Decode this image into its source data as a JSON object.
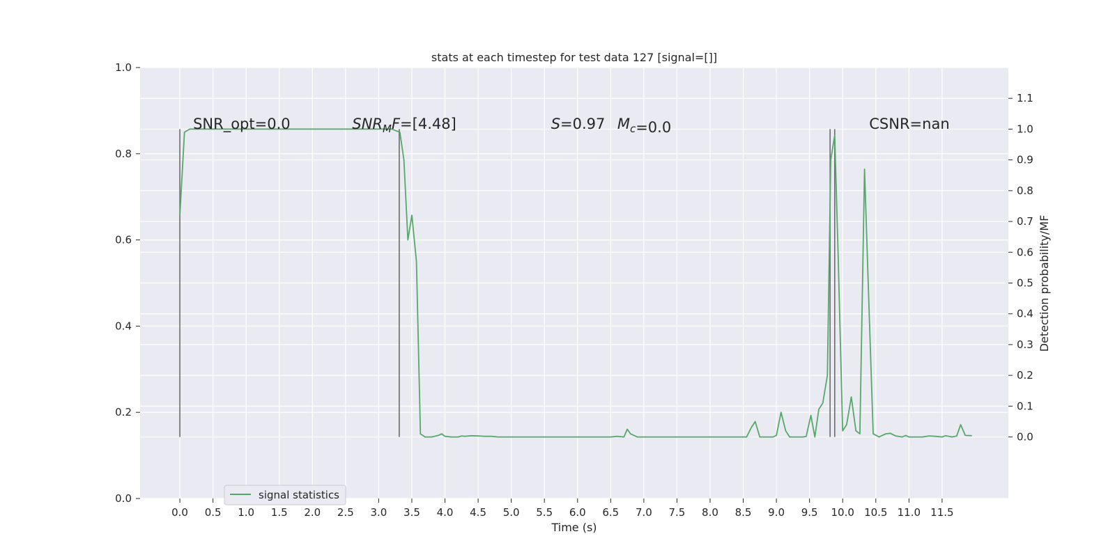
{
  "chart_data": {
    "type": "line",
    "title": "stats at each timestep for test data 127 [signal=[]]",
    "xlabel": "Time (s)",
    "ylabel": "",
    "y2label": "Detection probability/MF",
    "xlim": [
      -0.6,
      12.5
    ],
    "ylim": [
      0,
      1.0
    ],
    "y2lim": [
      -0.2,
      1.2
    ],
    "xticks": [
      "0.0",
      "0.5",
      "1.0",
      "1.5",
      "2.0",
      "2.5",
      "3.0",
      "3.5",
      "4.0",
      "4.5",
      "5.0",
      "5.5",
      "6.0",
      "6.5",
      "7.0",
      "7.5",
      "8.0",
      "8.5",
      "9.0",
      "9.5",
      "10.0",
      "10.5",
      "11.0",
      "11.5"
    ],
    "yticks": [
      "0.0",
      "0.2",
      "0.4",
      "0.6",
      "0.8",
      "1.0"
    ],
    "y2ticks": [
      "0.0",
      "0.1",
      "0.2",
      "0.3",
      "0.4",
      "0.5",
      "0.6",
      "0.7",
      "0.8",
      "0.9",
      "1.0",
      "1.1"
    ],
    "grid": true,
    "legend_position": "lower-left",
    "annotations": [
      {
        "text": "SNR_opt=0.0",
        "x": 0.2
      },
      {
        "text": "=[4.48]",
        "x": 2.6,
        "math_base": "SNR",
        "math_sub": "M",
        "math_tail": "F"
      },
      {
        "text": "=0.97",
        "x": 5.6,
        "math_base": "S"
      },
      {
        "text": "=0.0",
        "x": 6.6,
        "math_base": "M",
        "math_sub": "c"
      },
      {
        "text": "CSNR=nan",
        "x": 10.4
      }
    ],
    "vlines": [
      0.0,
      3.31,
      9.81,
      9.88
    ],
    "series": [
      {
        "name": "signal statistics",
        "color": "#55a868",
        "axis": "right",
        "x": [
          0.0,
          0.07,
          0.15,
          0.3,
          0.6,
          1.0,
          1.5,
          2.0,
          2.5,
          3.0,
          3.2,
          3.32,
          3.38,
          3.44,
          3.5,
          3.57,
          3.63,
          3.7,
          3.8,
          3.9,
          3.95,
          4.0,
          4.1,
          4.2,
          4.25,
          4.3,
          4.4,
          4.5,
          4.6,
          4.7,
          4.8,
          5.0,
          5.5,
          6.0,
          6.5,
          6.6,
          6.7,
          6.75,
          6.8,
          6.9,
          7.0,
          7.2,
          7.4,
          7.5,
          8.0,
          8.5,
          8.55,
          8.62,
          8.68,
          8.75,
          8.85,
          8.95,
          9.0,
          9.07,
          9.14,
          9.2,
          9.3,
          9.4,
          9.45,
          9.52,
          9.58,
          9.64,
          9.7,
          9.77,
          9.82,
          9.88,
          9.93,
          10.0,
          10.06,
          10.13,
          10.2,
          10.26,
          10.33,
          10.4,
          10.46,
          10.55,
          10.65,
          10.72,
          10.8,
          10.9,
          10.95,
          11.0,
          11.1,
          11.2,
          11.3,
          11.4,
          11.5,
          11.55,
          11.65,
          11.72,
          11.78,
          11.85,
          11.95
        ],
        "y": [
          0.72,
          0.99,
          1.0,
          1.0,
          1.0,
          1.0,
          1.0,
          1.0,
          1.0,
          1.0,
          1.0,
          0.99,
          0.9,
          0.64,
          0.72,
          0.57,
          0.01,
          0.0,
          0.0,
          0.005,
          0.01,
          0.002,
          0.0,
          0.0,
          0.003,
          0.002,
          0.004,
          0.003,
          0.002,
          0.002,
          0.0,
          0.0,
          0.0,
          0.0,
          0.0,
          0.002,
          0.0,
          0.025,
          0.01,
          0.0,
          0.0,
          0.0,
          0.0,
          0.0,
          0.0,
          0.0,
          0.0,
          0.03,
          0.05,
          0.0,
          0.0,
          0.0,
          0.005,
          0.08,
          0.02,
          0.0,
          0.0,
          0.0,
          0.002,
          0.07,
          0.0,
          0.09,
          0.11,
          0.2,
          0.9,
          0.98,
          0.6,
          0.02,
          0.04,
          0.13,
          0.02,
          0.01,
          0.87,
          0.4,
          0.01,
          0.0,
          0.01,
          0.012,
          0.003,
          0.0,
          0.005,
          0.0,
          0.0,
          0.0,
          0.003,
          0.002,
          0.0,
          0.004,
          0.0,
          0.003,
          0.04,
          0.005,
          0.004
        ]
      }
    ]
  }
}
